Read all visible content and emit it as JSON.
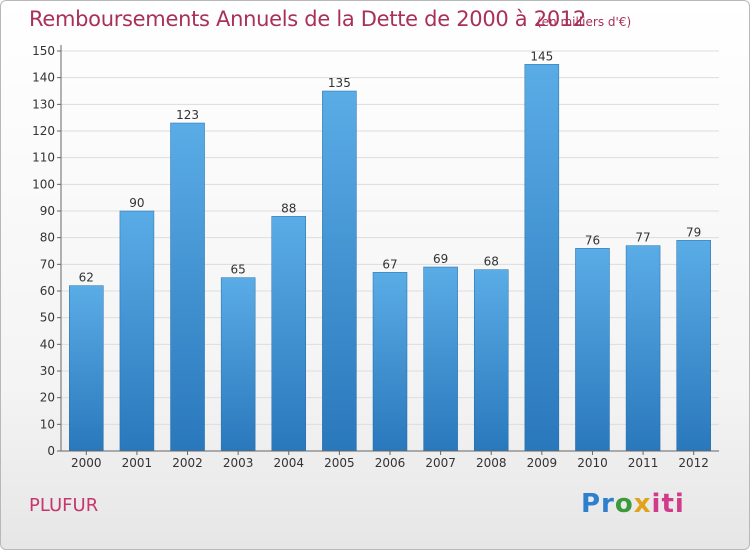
{
  "header": {
    "title": "Remboursements Annuels de la Dette de 2000 à 2012",
    "subtitle": "(en milliers d'€)"
  },
  "footer": {
    "town": "PLUFUR",
    "logo_parts": [
      "Pr",
      "o",
      "x",
      "iti"
    ]
  },
  "colors": {
    "bar_top": "#5aace6",
    "bar_bottom": "#2a78bc",
    "grid": "#dddddd",
    "title": "#a8305a"
  },
  "chart_data": {
    "type": "bar",
    "title": "Remboursements Annuels de la Dette de 2000 à 2012",
    "subtitle": "(en milliers d'€)",
    "xlabel": "",
    "ylabel": "",
    "ylim": [
      0,
      150
    ],
    "yticks": [
      0,
      10,
      20,
      30,
      40,
      50,
      60,
      70,
      80,
      90,
      100,
      110,
      120,
      130,
      140,
      150
    ],
    "grid": true,
    "categories": [
      "2000",
      "2001",
      "2002",
      "2003",
      "2004",
      "2005",
      "2006",
      "2007",
      "2008",
      "2009",
      "2010",
      "2011",
      "2012"
    ],
    "values": [
      62,
      90,
      123,
      65,
      88,
      135,
      67,
      69,
      68,
      145,
      76,
      77,
      79
    ]
  }
}
